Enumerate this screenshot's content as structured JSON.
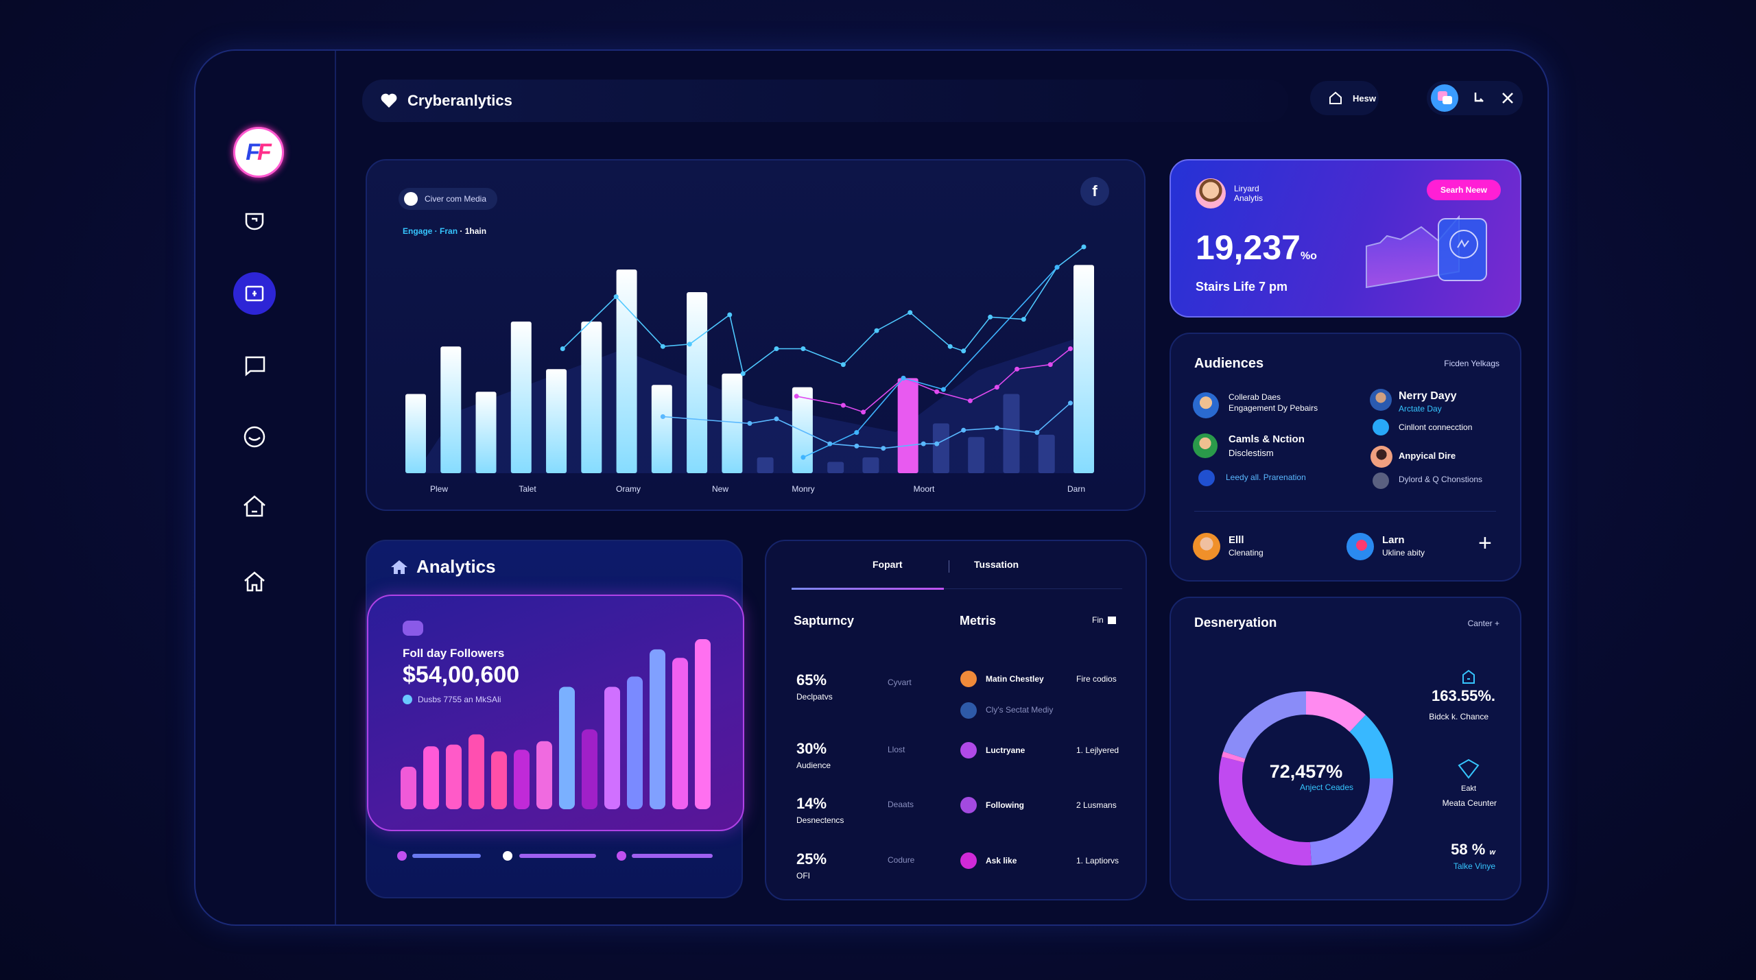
{
  "app": {
    "title": "Cryberanlytics",
    "logo_text": "FF"
  },
  "topbar": {
    "home_label": "Hesw"
  },
  "sidebar": {
    "items": [
      {
        "icon": "badge-icon"
      },
      {
        "icon": "id-card-icon",
        "active": true
      },
      {
        "icon": "chat-icon"
      },
      {
        "icon": "smiley-icon"
      },
      {
        "icon": "home-icon"
      },
      {
        "icon": "home-outline-icon"
      }
    ]
  },
  "main_chart": {
    "chip_label": "Civer com Media",
    "subtitle_parts": [
      "Engage",
      "Fran",
      "1hain"
    ],
    "x_labels": [
      "Plew",
      "Talet",
      "Oramy",
      "New",
      "Monry",
      "Moort",
      "Darn"
    ]
  },
  "promo": {
    "user_line1": "Liryard",
    "user_line2": "Analytis",
    "button": "Searh Neew",
    "value": "19,237",
    "unit": "%o",
    "caption": "Stairs Life 7 pm"
  },
  "audiences": {
    "title": "Audiences",
    "filter": "Ficden Yelkags",
    "left": [
      {
        "title": "Collerab Daes",
        "subtitle": "Engagement Dy Pebairs"
      },
      {
        "title": "Camls & Nction",
        "subtitle": "Disclestism"
      },
      {
        "title": "Leedy all. Prarenation",
        "link": true
      }
    ],
    "right": [
      {
        "title": "Nerry Dayy",
        "subtitle": "Arctate Day"
      },
      {
        "title": "Cinllont connecction"
      },
      {
        "title": "Anpyical Dire"
      },
      {
        "title": "Dylord & Q Chonstions"
      }
    ],
    "footer": [
      {
        "name": "Elll",
        "subtitle": "Clenating"
      },
      {
        "name": "Larn",
        "subtitle": "Ukline abity"
      }
    ]
  },
  "analytics": {
    "title": "Analytics",
    "label": "Foll day Followers",
    "value": "$54,00,600",
    "legend": "Dusbs 7755 an MkSAli"
  },
  "tabs_card": {
    "tabs": [
      "Fopart",
      "Tussation"
    ],
    "active_tab": 0,
    "left_title": "Sapturncy",
    "mid_title": "Metris",
    "action": "Fin",
    "stats": [
      {
        "pct": "65%",
        "label": "Declpatvs",
        "tag": "Cyvart"
      },
      {
        "pct": "30%",
        "label": "Audience",
        "tag": "Llost"
      },
      {
        "pct": "14%",
        "label": "Desnectencs",
        "tag": "Deaats"
      },
      {
        "pct": "25%",
        "label": "OFI",
        "tag": "Codure"
      }
    ],
    "metrics": [
      {
        "name": "Matin Chestley",
        "value": "Fire codios",
        "color": "#f08a3a"
      },
      {
        "name": "Cly's Sectat Mediy",
        "value": "",
        "color": "#2e5aa8"
      },
      {
        "name": "Luctryane",
        "value": "1. Lejlyered",
        "color": "#b04ae8"
      },
      {
        "name": "Following",
        "value": "2 Lusmans",
        "color": "#a34ae0"
      },
      {
        "name": "Ask like",
        "value": "1. Laptiorvs",
        "color": "#d02ad8"
      }
    ]
  },
  "desneryation": {
    "title": "Desneryation",
    "action": "Canter +",
    "center_value": "72,457%",
    "center_label": "Anject Ceades",
    "stats": [
      {
        "value": "163.55%.",
        "label": "Bidck k. Chance"
      },
      {
        "value": "",
        "label_top": "Eakt",
        "label": "Meata Ceunter"
      },
      {
        "value": "58 %",
        "unit": "w",
        "label": "Talke Vinye"
      }
    ]
  },
  "chart_data": [
    {
      "type": "bar",
      "name": "main-chart",
      "bars": [
        {
          "v": 35,
          "s": "light"
        },
        {
          "v": 56,
          "s": "light"
        },
        {
          "v": 36,
          "s": "light"
        },
        {
          "v": 67,
          "s": "light"
        },
        {
          "v": 46,
          "s": "light"
        },
        {
          "v": 67,
          "s": "light"
        },
        {
          "v": 90,
          "s": "light"
        },
        {
          "v": 39,
          "s": "light"
        },
        {
          "v": 80,
          "s": "light"
        },
        {
          "v": 44,
          "s": "light"
        },
        {
          "v": 7,
          "s": "dark"
        },
        {
          "v": 38,
          "s": "light"
        },
        {
          "v": 5,
          "s": "dark"
        },
        {
          "v": 7,
          "s": "dark"
        },
        {
          "v": 42,
          "s": "pink"
        },
        {
          "v": 22,
          "s": "dark"
        },
        {
          "v": 16,
          "s": "dark"
        },
        {
          "v": 35,
          "s": "dark"
        },
        {
          "v": 17,
          "s": "dark"
        },
        {
          "v": 92,
          "s": "light"
        }
      ],
      "lines": [
        {
          "color": "#4fc8ff",
          "points": [
            [
              22,
              55
            ],
            [
              30,
              78
            ],
            [
              37,
              56
            ],
            [
              41,
              57
            ],
            [
              47,
              70
            ],
            [
              49,
              44
            ],
            [
              54,
              55
            ],
            [
              58,
              55
            ],
            [
              64,
              48
            ],
            [
              69,
              63
            ],
            [
              74,
              71
            ],
            [
              80,
              56
            ],
            [
              82,
              54
            ],
            [
              86,
              69
            ],
            [
              91,
              68
            ],
            [
              96,
              91
            ],
            [
              100,
              100
            ]
          ]
        },
        {
          "color": "#e04af0",
          "points": [
            [
              57,
              34
            ],
            [
              64,
              30
            ],
            [
              67,
              27
            ],
            [
              73,
              42
            ],
            [
              78,
              36
            ],
            [
              83,
              32
            ],
            [
              87,
              38
            ],
            [
              90,
              46
            ],
            [
              95,
              48
            ],
            [
              98,
              55
            ]
          ]
        },
        {
          "color": "#5ab8ff",
          "points": [
            [
              37,
              25
            ],
            [
              50,
              22
            ],
            [
              54,
              24
            ],
            [
              62,
              13
            ],
            [
              66,
              12
            ],
            [
              70,
              11
            ],
            [
              76,
              13
            ],
            [
              78,
              13
            ],
            [
              82,
              19
            ],
            [
              87,
              20
            ],
            [
              93,
              18
            ],
            [
              98,
              31
            ]
          ]
        },
        {
          "color": "#3fb4ff",
          "points": [
            [
              58,
              7
            ],
            [
              66,
              18
            ],
            [
              73,
              42
            ],
            [
              79,
              37
            ],
            [
              96,
              91
            ]
          ]
        }
      ],
      "ylim": [
        0,
        100
      ]
    },
    {
      "type": "bar",
      "name": "followers-chart",
      "values": [
        25,
        37,
        38,
        44,
        34,
        35,
        40,
        72,
        47,
        72,
        78,
        94,
        89,
        100
      ],
      "colors": [
        "#f05ad8",
        "#ff5ad8",
        "#ff5ac8",
        "#ff4fb0",
        "#ff4fa8",
        "#c02ad8",
        "#f06ae0",
        "#7ab0ff",
        "#a020c8",
        "#d070ff",
        "#7a8aff",
        "#80a0ff",
        "#f060f0",
        "#ff70f0"
      ]
    },
    {
      "type": "pie",
      "name": "donut",
      "values": [
        12,
        13,
        24,
        30,
        1,
        20
      ],
      "colors": [
        "#ff8af0",
        "#38b8ff",
        "#8a86ff",
        "#c04af0",
        "#ff7ae0",
        "#8a8cf8"
      ]
    }
  ],
  "colors": {
    "accent": "#2d25d6",
    "pink": "#ff1fd5",
    "cyan": "#36c6ff"
  }
}
